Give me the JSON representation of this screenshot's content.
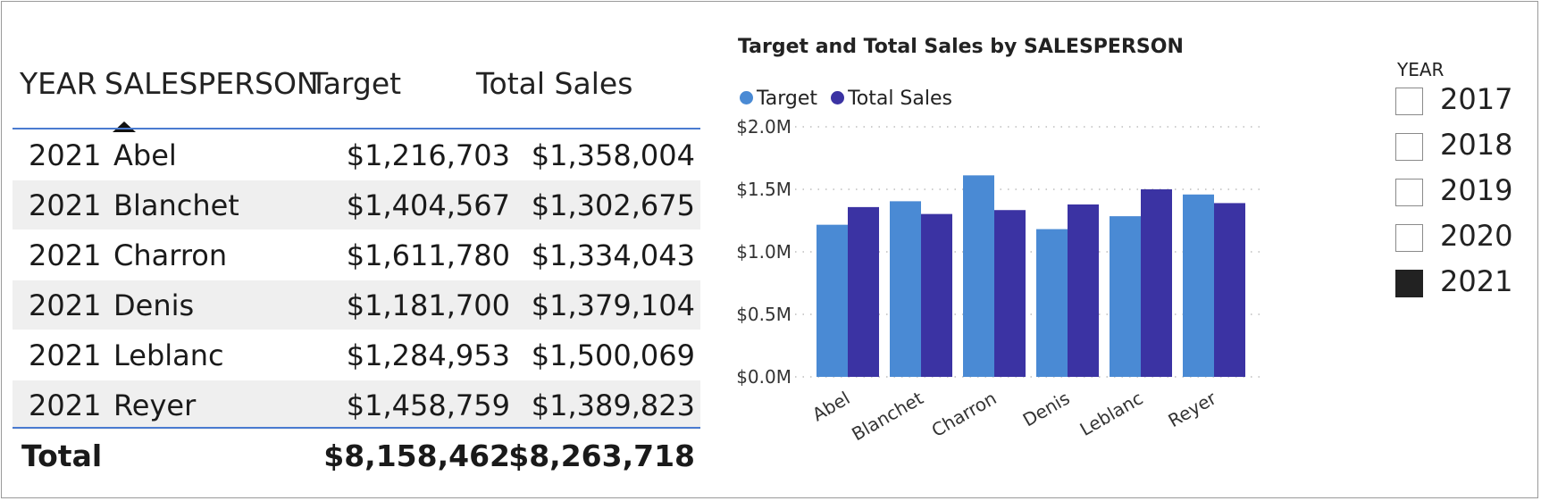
{
  "table": {
    "headers": {
      "year": "YEAR",
      "salesperson": "SALESPERSON",
      "target": "Target",
      "total_sales": "Total Sales"
    },
    "rows": [
      {
        "year": "2021",
        "salesperson": "Abel",
        "target": "$1,216,703",
        "total_sales": "$1,358,004"
      },
      {
        "year": "2021",
        "salesperson": "Blanchet",
        "target": "$1,404,567",
        "total_sales": "$1,302,675"
      },
      {
        "year": "2021",
        "salesperson": "Charron",
        "target": "$1,611,780",
        "total_sales": "$1,334,043"
      },
      {
        "year": "2021",
        "salesperson": "Denis",
        "target": "$1,181,700",
        "total_sales": "$1,379,104"
      },
      {
        "year": "2021",
        "salesperson": "Leblanc",
        "target": "$1,284,953",
        "total_sales": "$1,500,069"
      },
      {
        "year": "2021",
        "salesperson": "Reyer",
        "target": "$1,458,759",
        "total_sales": "$1,389,823"
      }
    ],
    "total": {
      "label": "Total",
      "target": "$8,158,462",
      "total_sales": "$8,263,718"
    },
    "sort_indicator": "ascending"
  },
  "chart_data": {
    "type": "bar",
    "title": "Target and Total Sales by SALESPERSON",
    "categories": [
      "Abel",
      "Blanchet",
      "Charron",
      "Denis",
      "Leblanc",
      "Reyer"
    ],
    "series": [
      {
        "name": "Target",
        "color": "#4a8ad4",
        "values": [
          1216703,
          1404567,
          1611780,
          1181700,
          1284953,
          1458759
        ]
      },
      {
        "name": "Total Sales",
        "color": "#3b33a3",
        "values": [
          1358004,
          1302675,
          1334043,
          1379104,
          1500069,
          1389823
        ]
      }
    ],
    "y_ticks": [
      "$0.0M",
      "$0.5M",
      "$1.0M",
      "$1.5M",
      "$2.0M"
    ],
    "ylim": [
      0,
      2000000
    ],
    "grid": "dotted horizontal",
    "legend_position": "top-left"
  },
  "slicer": {
    "title": "YEAR",
    "options": [
      {
        "label": "2017",
        "checked": false
      },
      {
        "label": "2018",
        "checked": false
      },
      {
        "label": "2019",
        "checked": false
      },
      {
        "label": "2020",
        "checked": false
      },
      {
        "label": "2021",
        "checked": true
      }
    ]
  }
}
